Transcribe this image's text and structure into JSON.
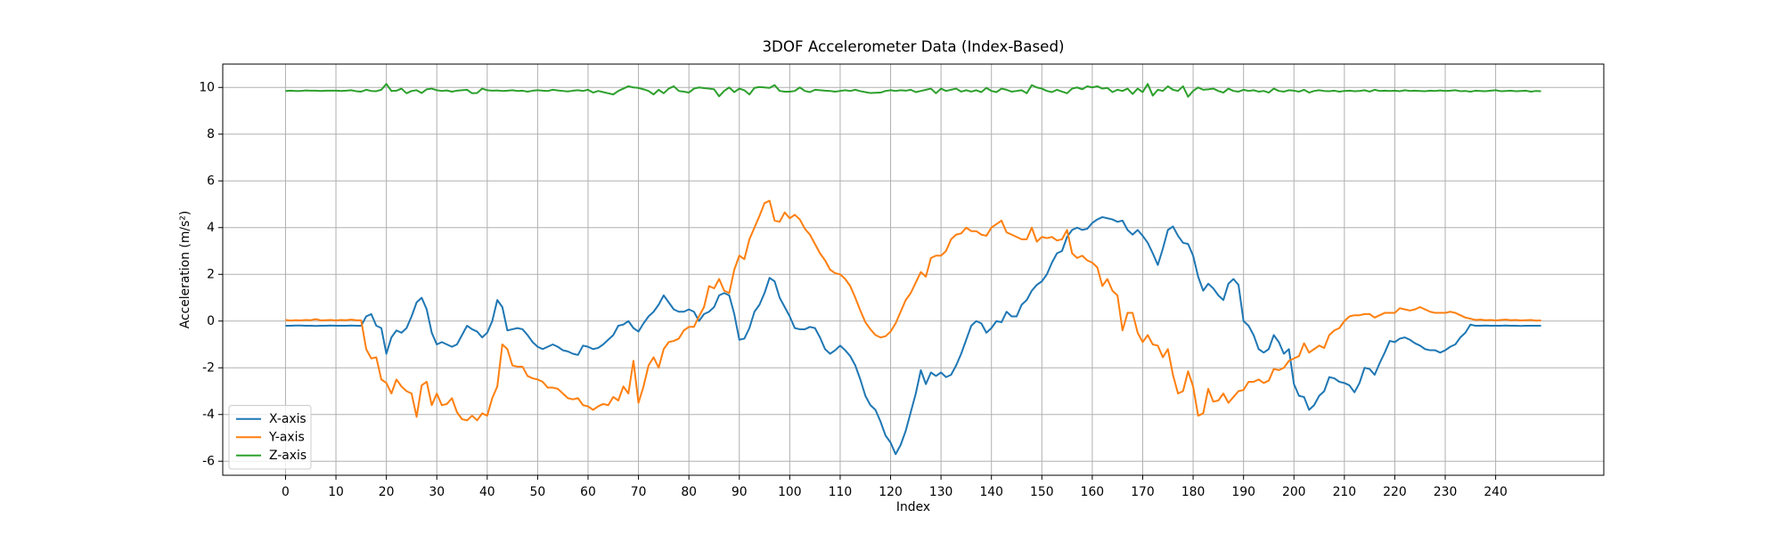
{
  "chart_data": {
    "type": "line",
    "title": "3DOF Accelerometer Data (Index-Based)",
    "xlabel": "Index",
    "ylabel": "Acceleration (m/s²)",
    "x": [
      0,
      1,
      2,
      3,
      4,
      5,
      6,
      7,
      8,
      9,
      10,
      11,
      12,
      13,
      14,
      15,
      16,
      17,
      18,
      19,
      20,
      21,
      22,
      23,
      24,
      25,
      26,
      27,
      28,
      29,
      30,
      31,
      32,
      33,
      34,
      35,
      36,
      37,
      38,
      39,
      40,
      41,
      42,
      43,
      44,
      45,
      46,
      47,
      48,
      49,
      50,
      51,
      52,
      53,
      54,
      55,
      56,
      57,
      58,
      59,
      60,
      61,
      62,
      63,
      64,
      65,
      66,
      67,
      68,
      69,
      70,
      71,
      72,
      73,
      74,
      75,
      76,
      77,
      78,
      79,
      80,
      81,
      82,
      83,
      84,
      85,
      86,
      87,
      88,
      89,
      90,
      91,
      92,
      93,
      94,
      95,
      96,
      97,
      98,
      99,
      100,
      101,
      102,
      103,
      104,
      105,
      106,
      107,
      108,
      109,
      110,
      111,
      112,
      113,
      114,
      115,
      116,
      117,
      118,
      119,
      120,
      121,
      122,
      123,
      124,
      125,
      126,
      127,
      128,
      129,
      130,
      131,
      132,
      133,
      134,
      135,
      136,
      137,
      138,
      139,
      140,
      141,
      142,
      143,
      144,
      145,
      146,
      147,
      148,
      149,
      150,
      151,
      152,
      153,
      154,
      155,
      156,
      157,
      158,
      159,
      160,
      161,
      162,
      163,
      164,
      165,
      166,
      167,
      168,
      169,
      170,
      171,
      172,
      173,
      174,
      175,
      176,
      177,
      178,
      179,
      180,
      181,
      182,
      183,
      184,
      185,
      186,
      187,
      188,
      189,
      190,
      191,
      192,
      193,
      194,
      195,
      196,
      197,
      198,
      199,
      200,
      201,
      202,
      203,
      204,
      205,
      206,
      207,
      208,
      209,
      210,
      211,
      212,
      213,
      214,
      215,
      216,
      217,
      218,
      219,
      220,
      221,
      222,
      223,
      224,
      225,
      226,
      227,
      228,
      229,
      230,
      231,
      232,
      233,
      234,
      235,
      236,
      237,
      238,
      239,
      240,
      241,
      242,
      243,
      244,
      245,
      246,
      247,
      248,
      249
    ],
    "series": [
      {
        "name": "X-axis",
        "color": "#1f77b4",
        "values": [
          -0.2,
          -0.2,
          -0.19,
          -0.19,
          -0.2,
          -0.2,
          -0.21,
          -0.2,
          -0.2,
          -0.19,
          -0.2,
          -0.2,
          -0.2,
          -0.19,
          -0.2,
          -0.2,
          0.2,
          0.3,
          -0.2,
          -0.3,
          -1.4,
          -0.7,
          -0.4,
          -0.5,
          -0.3,
          0.2,
          0.8,
          1.0,
          0.5,
          -0.5,
          -1.0,
          -0.9,
          -1.0,
          -1.1,
          -1.0,
          -0.6,
          -0.2,
          -0.35,
          -0.45,
          -0.7,
          -0.5,
          0.0,
          0.9,
          0.6,
          -0.4,
          -0.35,
          -0.3,
          -0.35,
          -0.6,
          -0.9,
          -1.1,
          -1.2,
          -1.1,
          -1.0,
          -1.1,
          -1.25,
          -1.3,
          -1.4,
          -1.45,
          -1.05,
          -1.1,
          -1.2,
          -1.15,
          -1.0,
          -0.8,
          -0.6,
          -0.2,
          -0.15,
          0.0,
          -0.3,
          -0.45,
          -0.1,
          0.2,
          0.4,
          0.7,
          1.1,
          0.8,
          0.5,
          0.4,
          0.4,
          0.5,
          0.4,
          0.0,
          0.3,
          0.4,
          0.6,
          1.1,
          1.2,
          1.1,
          0.3,
          -0.8,
          -0.75,
          -0.3,
          0.4,
          0.7,
          1.2,
          1.85,
          1.7,
          1.0,
          0.6,
          0.2,
          -0.3,
          -0.35,
          -0.35,
          -0.25,
          -0.3,
          -0.7,
          -1.2,
          -1.4,
          -1.25,
          -1.05,
          -1.25,
          -1.5,
          -1.9,
          -2.5,
          -3.2,
          -3.6,
          -3.8,
          -4.3,
          -4.9,
          -5.2,
          -5.7,
          -5.3,
          -4.7,
          -3.9,
          -3.1,
          -2.1,
          -2.7,
          -2.2,
          -2.35,
          -2.2,
          -2.4,
          -2.3,
          -1.9,
          -1.4,
          -0.8,
          -0.2,
          0.0,
          -0.1,
          -0.5,
          -0.3,
          0.0,
          -0.05,
          0.4,
          0.2,
          0.2,
          0.7,
          0.9,
          1.3,
          1.55,
          1.7,
          2.0,
          2.5,
          2.9,
          3.0,
          3.6,
          3.9,
          4.0,
          3.9,
          3.95,
          4.2,
          4.35,
          4.45,
          4.4,
          4.35,
          4.25,
          4.3,
          3.9,
          3.7,
          3.9,
          3.65,
          3.35,
          2.9,
          2.4,
          3.1,
          3.9,
          4.05,
          3.65,
          3.35,
          3.3,
          2.8,
          1.9,
          1.3,
          1.6,
          1.4,
          1.1,
          0.9,
          1.6,
          1.8,
          1.55,
          0.0,
          -0.2,
          -0.6,
          -1.2,
          -1.35,
          -1.2,
          -0.6,
          -0.9,
          -1.4,
          -1.2,
          -2.7,
          -3.2,
          -3.25,
          -3.8,
          -3.6,
          -3.2,
          -3.0,
          -2.4,
          -2.45,
          -2.6,
          -2.65,
          -2.75,
          -3.05,
          -2.65,
          -2.0,
          -2.05,
          -2.3,
          -1.8,
          -1.35,
          -0.85,
          -0.9,
          -0.75,
          -0.7,
          -0.8,
          -0.95,
          -1.05,
          -1.2,
          -1.25,
          -1.25,
          -1.35,
          -1.25,
          -1.1,
          -1.0,
          -0.7,
          -0.5,
          -0.15,
          -0.2,
          -0.2,
          -0.19,
          -0.2,
          -0.2,
          -0.2,
          -0.19,
          -0.2,
          -0.2,
          -0.21,
          -0.2,
          -0.2,
          -0.2,
          -0.2
        ]
      },
      {
        "name": "Y-axis",
        "color": "#ff7f0e",
        "values": [
          0.05,
          0.02,
          0.04,
          0.03,
          0.05,
          0.04,
          0.08,
          0.03,
          0.04,
          0.05,
          0.03,
          0.05,
          0.04,
          0.06,
          0.04,
          0.03,
          -1.2,
          -1.6,
          -1.55,
          -2.5,
          -2.65,
          -3.1,
          -2.5,
          -2.8,
          -3.0,
          -3.1,
          -4.1,
          -2.75,
          -2.6,
          -3.6,
          -3.1,
          -3.6,
          -3.55,
          -3.3,
          -3.9,
          -4.2,
          -4.25,
          -4.05,
          -4.25,
          -3.95,
          -4.05,
          -3.3,
          -2.8,
          -1.0,
          -1.2,
          -1.9,
          -1.95,
          -1.95,
          -2.35,
          -2.45,
          -2.5,
          -2.6,
          -2.85,
          -2.85,
          -2.9,
          -3.1,
          -3.3,
          -3.35,
          -3.3,
          -3.6,
          -3.65,
          -3.8,
          -3.65,
          -3.55,
          -3.6,
          -3.25,
          -3.4,
          -2.8,
          -3.1,
          -1.7,
          -3.5,
          -2.8,
          -1.9,
          -1.55,
          -2.0,
          -1.2,
          -0.9,
          -0.85,
          -0.75,
          -0.4,
          -0.25,
          -0.25,
          0.2,
          0.6,
          1.5,
          1.4,
          1.8,
          1.3,
          1.2,
          2.2,
          2.8,
          2.65,
          3.5,
          4.0,
          4.5,
          5.05,
          5.15,
          4.3,
          4.25,
          4.65,
          4.4,
          4.55,
          4.35,
          3.95,
          3.7,
          3.3,
          2.9,
          2.6,
          2.2,
          2.05,
          2.0,
          1.8,
          1.5,
          1.0,
          0.45,
          -0.05,
          -0.35,
          -0.6,
          -0.7,
          -0.65,
          -0.45,
          -0.1,
          0.4,
          0.9,
          1.2,
          1.65,
          2.1,
          1.9,
          2.7,
          2.8,
          2.8,
          3.0,
          3.5,
          3.7,
          3.75,
          4.0,
          3.85,
          3.85,
          3.7,
          3.65,
          4.0,
          4.15,
          4.3,
          3.8,
          3.7,
          3.6,
          3.5,
          3.5,
          4.0,
          3.4,
          3.6,
          3.55,
          3.6,
          3.45,
          3.5,
          3.9,
          2.9,
          2.7,
          2.8,
          2.6,
          2.5,
          2.3,
          1.5,
          1.8,
          1.3,
          1.1,
          -0.4,
          0.35,
          0.35,
          -0.5,
          -0.9,
          -0.6,
          -1.0,
          -1.05,
          -1.55,
          -1.2,
          -2.3,
          -3.1,
          -3.0,
          -2.15,
          -2.8,
          -4.05,
          -3.95,
          -2.9,
          -3.45,
          -3.4,
          -3.1,
          -3.5,
          -3.25,
          -3.0,
          -2.95,
          -2.6,
          -2.6,
          -2.5,
          -2.65,
          -2.55,
          -2.05,
          -2.1,
          -2.0,
          -1.7,
          -1.6,
          -1.5,
          -0.95,
          -1.35,
          -1.2,
          -1.05,
          -1.15,
          -0.6,
          -0.4,
          -0.3,
          0.0,
          0.2,
          0.25,
          0.25,
          0.3,
          0.3,
          0.15,
          0.25,
          0.35,
          0.35,
          0.35,
          0.55,
          0.5,
          0.45,
          0.5,
          0.6,
          0.5,
          0.4,
          0.35,
          0.35,
          0.35,
          0.4,
          0.35,
          0.25,
          0.15,
          0.1,
          0.05,
          0.06,
          0.04,
          0.05,
          0.03,
          0.05,
          0.06,
          0.04,
          0.05,
          0.03,
          0.04,
          0.05,
          0.02,
          0.03
        ]
      },
      {
        "name": "Z-axis",
        "color": "#2ca02c",
        "values": [
          9.85,
          9.86,
          9.85,
          9.85,
          9.87,
          9.86,
          9.86,
          9.85,
          9.86,
          9.86,
          9.86,
          9.85,
          9.86,
          9.88,
          9.84,
          9.82,
          9.9,
          9.85,
          9.84,
          9.9,
          10.15,
          9.85,
          9.86,
          9.95,
          9.75,
          9.85,
          9.88,
          9.76,
          9.92,
          9.95,
          9.88,
          9.85,
          9.87,
          9.82,
          9.86,
          9.88,
          9.9,
          9.75,
          9.76,
          9.95,
          9.88,
          9.86,
          9.87,
          9.85,
          9.86,
          9.88,
          9.85,
          9.86,
          9.82,
          9.86,
          9.88,
          9.86,
          9.85,
          9.9,
          9.87,
          9.85,
          9.83,
          9.86,
          9.88,
          9.85,
          9.9,
          9.78,
          9.85,
          9.8,
          9.75,
          9.7,
          9.85,
          9.95,
          10.05,
          10.0,
          9.98,
          9.92,
          9.85,
          9.7,
          9.9,
          9.75,
          9.95,
          10.05,
          9.85,
          9.82,
          9.78,
          9.95,
          10.0,
          9.97,
          9.95,
          9.92,
          9.62,
          9.85,
          10.0,
          9.8,
          9.95,
          9.88,
          9.7,
          9.98,
          10.02,
          10.0,
          9.98,
          10.1,
          9.85,
          9.82,
          9.82,
          9.85,
          10.0,
          9.85,
          9.8,
          9.9,
          9.88,
          9.86,
          9.85,
          9.82,
          9.85,
          9.88,
          9.85,
          9.9,
          9.84,
          9.8,
          9.76,
          9.77,
          9.78,
          9.85,
          9.88,
          9.85,
          9.88,
          9.86,
          9.9,
          9.8,
          9.85,
          9.9,
          9.95,
          9.75,
          9.95,
          9.85,
          9.9,
          9.95,
          9.82,
          9.88,
          9.82,
          9.88,
          9.8,
          9.98,
          9.85,
          9.8,
          9.95,
          9.9,
          9.82,
          9.85,
          9.88,
          9.75,
          10.1,
          10.0,
          9.95,
          9.85,
          9.8,
          9.9,
          9.82,
          9.75,
          9.95,
          10.0,
          9.92,
          10.05,
          10.0,
          10.05,
          9.95,
          9.98,
          9.8,
          9.9,
          9.85,
          9.95,
          9.72,
          9.95,
          9.8,
          10.15,
          9.65,
          9.9,
          9.85,
          10.05,
          9.9,
          9.85,
          10.05,
          9.6,
          9.85,
          10.0,
          9.9,
          9.92,
          9.95,
          9.85,
          9.78,
          9.95,
          9.85,
          9.82,
          9.9,
          9.85,
          9.88,
          9.82,
          9.85,
          9.78,
          9.95,
          9.85,
          9.82,
          9.88,
          9.86,
          9.82,
          9.9,
          9.78,
          9.85,
          9.88,
          9.85,
          9.84,
          9.86,
          9.82,
          9.85,
          9.86,
          9.84,
          9.85,
          9.88,
          9.82,
          9.9,
          9.85,
          9.86,
          9.85,
          9.86,
          9.84,
          9.88,
          9.85,
          9.86,
          9.85,
          9.84,
          9.86,
          9.85,
          9.87,
          9.85,
          9.86,
          9.88,
          9.84,
          9.85,
          9.82,
          9.86,
          9.85,
          9.84,
          9.86,
          9.88,
          9.84,
          9.85,
          9.86,
          9.84,
          9.85,
          9.86,
          9.82,
          9.85,
          9.84
        ]
      }
    ],
    "xlim": [
      -12.45,
      261.45
    ],
    "xticks": [
      0,
      10,
      20,
      30,
      40,
      50,
      60,
      70,
      80,
      90,
      100,
      110,
      120,
      130,
      140,
      150,
      160,
      170,
      180,
      190,
      200,
      210,
      220,
      230,
      240
    ],
    "ylim": [
      -6.6,
      11
    ],
    "yticks": [
      -6,
      -4,
      -2,
      0,
      2,
      4,
      6,
      8,
      10
    ],
    "grid": true,
    "legend": "lower left"
  }
}
